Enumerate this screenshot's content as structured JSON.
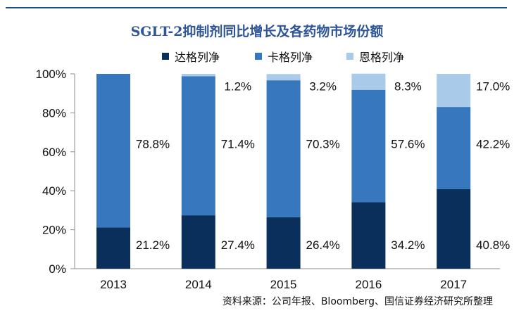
{
  "chart_data": {
    "type": "bar",
    "stacked": true,
    "title": "SGLT-2抑制剂同比增长及各药物市场份额",
    "categories": [
      "2013",
      "2014",
      "2015",
      "2016",
      "2017"
    ],
    "series": [
      {
        "name": "达格列净",
        "color": "#0b2f5b",
        "values": [
          21.2,
          27.4,
          26.4,
          34.2,
          40.8
        ],
        "labels": [
          "21.2%",
          "27.4%",
          "26.4%",
          "34.2%",
          "40.8%"
        ]
      },
      {
        "name": "卡格列净",
        "color": "#3777be",
        "values": [
          78.8,
          71.4,
          70.3,
          57.6,
          42.2
        ],
        "labels": [
          "78.8%",
          "71.4%",
          "70.3%",
          "57.6%",
          "42.2%"
        ]
      },
      {
        "name": "恩格列净",
        "color": "#a9cbe9",
        "values": [
          0,
          1.2,
          3.2,
          8.3,
          17.0
        ],
        "labels": [
          "",
          "1.2%",
          "3.2%",
          "8.3%",
          "17.0%"
        ]
      }
    ],
    "y_ticks": [
      "0%",
      "20%",
      "40%",
      "60%",
      "80%",
      "100%"
    ],
    "ylim": [
      0,
      100
    ],
    "legend_position": "top",
    "grid": false
  },
  "source_note": "资料来源：公司年报、Bloomberg、国信证券经济研究所整理"
}
